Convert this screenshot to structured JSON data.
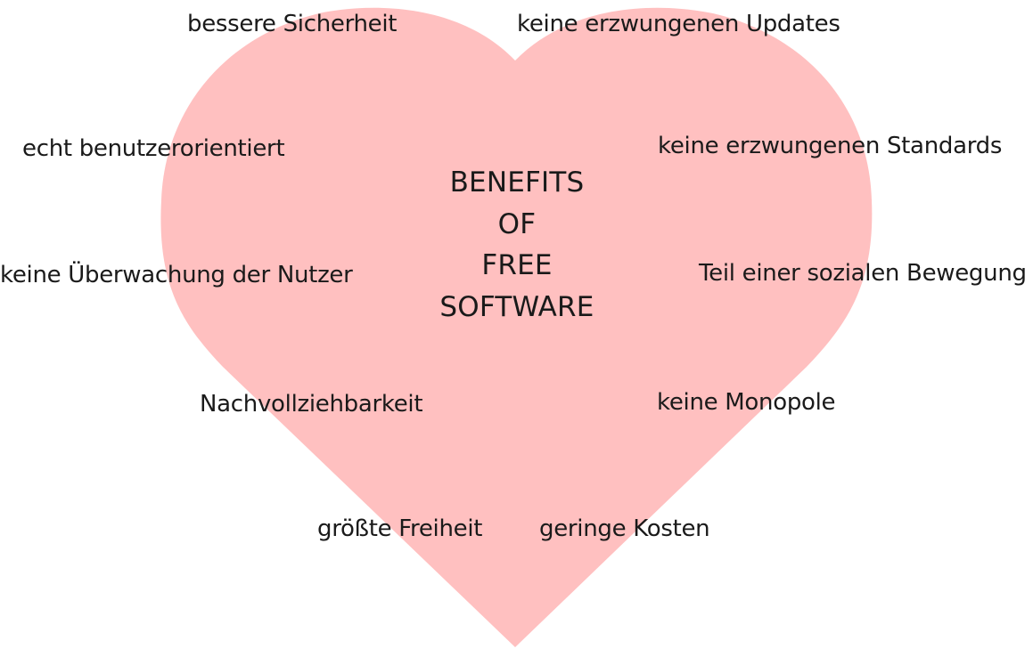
{
  "heart_color": "#ffc0c0",
  "center_title": {
    "line1": "BENEFITS",
    "line2": "OF",
    "line3": "FREE",
    "line4": "SOFTWARE"
  },
  "benefits": {
    "sicherheit": "bessere Sicherheit",
    "updates": "keine erzwungenen Updates",
    "benutzerorientiert": "echt benutzerorientiert",
    "standards": "keine erzwungenen Standards",
    "ueberwachung": "keine Überwachung der Nutzer",
    "sozial": "Teil einer sozialen Bewegung",
    "nachvollziehbarkeit": "Nachvollziehbarkeit",
    "monopole": "keine Monopole",
    "freiheit": "größte Freiheit",
    "kosten": "geringe Kosten"
  }
}
